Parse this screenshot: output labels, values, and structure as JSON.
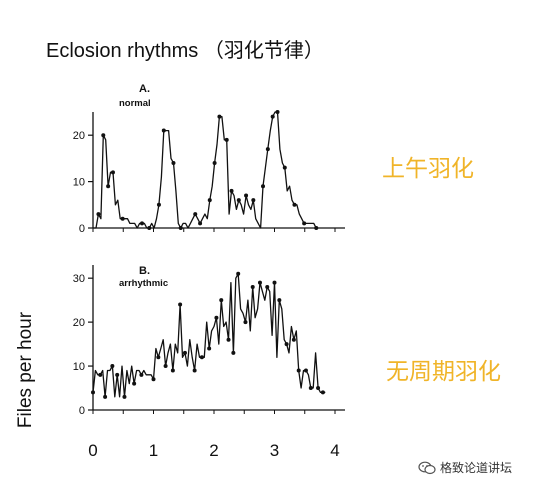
{
  "slide": {
    "title": "Eclosion rhythms （羽化节律）",
    "annotation_top": "上午羽化",
    "annotation_bottom": "无周期羽化",
    "y_axis_label": "Files per hour",
    "footer": "格致论道讲坛",
    "accent_color": "#f0b428",
    "footer_icon": "wechat-icon"
  },
  "chart_data": [
    {
      "type": "line",
      "panel_label": "A.",
      "panel_sublabel": "normal",
      "ylim": [
        0,
        25
      ],
      "yticks": [
        0,
        10,
        20
      ],
      "xlim": [
        0,
        4
      ],
      "x": [
        0.0,
        0.05,
        0.09,
        0.13,
        0.17,
        0.21,
        0.25,
        0.29,
        0.33,
        0.37,
        0.41,
        0.45,
        0.49,
        0.53,
        0.57,
        0.61,
        0.65,
        0.69,
        0.73,
        0.77,
        0.81,
        0.85,
        0.89,
        0.93,
        0.97,
        1.01,
        1.05,
        1.09,
        1.13,
        1.17,
        1.21,
        1.25,
        1.29,
        1.33,
        1.37,
        1.41,
        1.45,
        1.49,
        1.53,
        1.57,
        1.61,
        1.65,
        1.69,
        1.73,
        1.77,
        1.81,
        1.85,
        1.89,
        1.93,
        1.97,
        2.01,
        2.05,
        2.09,
        2.13,
        2.17,
        2.21,
        2.25,
        2.29,
        2.33,
        2.37,
        2.41,
        2.45,
        2.49,
        2.53,
        2.57,
        2.61,
        2.65,
        2.69,
        2.73,
        2.77,
        2.81,
        2.85,
        2.89,
        2.93,
        2.97,
        3.01,
        3.05,
        3.09,
        3.13,
        3.17,
        3.21,
        3.25,
        3.29,
        3.33,
        3.37,
        3.41,
        3.45,
        3.49,
        3.53,
        3.57,
        3.61,
        3.65,
        3.69
      ],
      "y": [
        0,
        0,
        3,
        2,
        20,
        19,
        9,
        12,
        12,
        5,
        6,
        2,
        2,
        2,
        2,
        1,
        1,
        1,
        0,
        1,
        1,
        1,
        0,
        0,
        1,
        0,
        2,
        5,
        11,
        21,
        21,
        21,
        15,
        14,
        8,
        1,
        0,
        1,
        1,
        0,
        1,
        2,
        3,
        2,
        1,
        2,
        3,
        2,
        6,
        9,
        14,
        18,
        24,
        24,
        19,
        19,
        3,
        8,
        7,
        4,
        6,
        5,
        3,
        7,
        5,
        4,
        6,
        2,
        1,
        0,
        9,
        13,
        17,
        21,
        24,
        25,
        25,
        17,
        14,
        13,
        8,
        9,
        6,
        5,
        5,
        3,
        2,
        1,
        1,
        1,
        1,
        1,
        0
      ],
      "markers": [
        2,
        4,
        6,
        8,
        12,
        20,
        23,
        27,
        29,
        33,
        36,
        42,
        44,
        48,
        50,
        52,
        55,
        57,
        60,
        63,
        66,
        70,
        72,
        74,
        76,
        79,
        83,
        87,
        92
      ]
    },
    {
      "type": "line",
      "panel_label": "B.",
      "panel_sublabel": "arrhythmic",
      "ylim": [
        0,
        33
      ],
      "yticks": [
        0,
        10,
        20,
        30
      ],
      "xlim": [
        0,
        4
      ],
      "xticks": [
        0,
        1,
        2,
        3,
        4
      ],
      "x": [
        0.0,
        0.04,
        0.08,
        0.12,
        0.16,
        0.2,
        0.24,
        0.28,
        0.32,
        0.36,
        0.4,
        0.44,
        0.48,
        0.52,
        0.56,
        0.6,
        0.64,
        0.68,
        0.72,
        0.76,
        0.8,
        0.84,
        0.88,
        0.92,
        0.96,
        1.0,
        1.04,
        1.08,
        1.12,
        1.16,
        1.2,
        1.24,
        1.28,
        1.32,
        1.36,
        1.4,
        1.44,
        1.48,
        1.52,
        1.56,
        1.6,
        1.64,
        1.68,
        1.72,
        1.76,
        1.8,
        1.84,
        1.88,
        1.92,
        1.96,
        2.0,
        2.04,
        2.08,
        2.12,
        2.16,
        2.2,
        2.24,
        2.28,
        2.32,
        2.36,
        2.4,
        2.44,
        2.48,
        2.52,
        2.56,
        2.6,
        2.64,
        2.68,
        2.72,
        2.76,
        2.8,
        2.84,
        2.88,
        2.92,
        2.96,
        3.0,
        3.04,
        3.08,
        3.12,
        3.16,
        3.2,
        3.24,
        3.28,
        3.32,
        3.36,
        3.4,
        3.44,
        3.48,
        3.52,
        3.56,
        3.6,
        3.64,
        3.68,
        3.72,
        3.76,
        3.8,
        3.84
      ],
      "y": [
        4,
        9,
        8,
        8,
        9,
        3,
        9,
        9,
        10,
        3,
        8,
        3,
        10,
        3,
        9,
        6,
        10,
        6,
        9,
        9,
        8,
        9,
        8,
        8,
        8,
        7,
        14,
        12,
        14,
        16,
        10,
        13,
        15,
        9,
        15,
        13,
        24,
        12,
        13,
        10,
        16,
        12,
        9,
        15,
        12,
        12,
        12,
        20,
        14,
        18,
        19,
        21,
        15,
        25,
        19,
        20,
        16,
        29,
        13,
        30,
        31,
        23,
        22,
        20,
        25,
        18,
        28,
        21,
        23,
        29,
        27,
        25,
        28,
        27,
        17,
        29,
        12,
        25,
        23,
        16,
        15,
        13,
        19,
        16,
        18,
        9,
        5,
        9,
        9,
        8,
        5,
        5,
        13,
        5,
        4,
        4,
        4
      ],
      "markers": [
        0,
        3,
        5,
        8,
        10,
        13,
        17,
        20,
        25,
        27,
        30,
        33,
        36,
        38,
        42,
        45,
        48,
        51,
        53,
        56,
        58,
        60,
        63,
        66,
        69,
        72,
        75,
        77,
        80,
        83,
        85,
        88,
        90,
        93,
        95
      ]
    }
  ]
}
